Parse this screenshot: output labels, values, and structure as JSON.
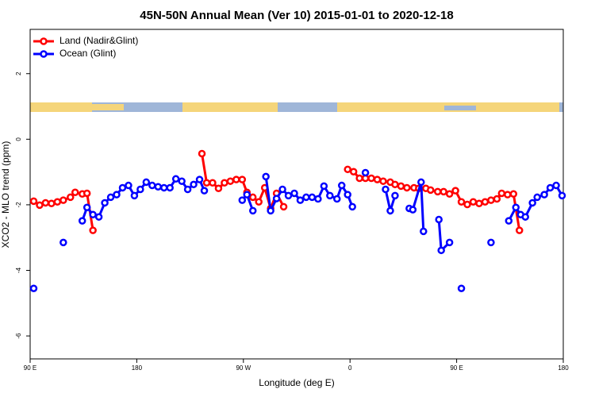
{
  "chart_data": {
    "type": "line",
    "title": "45N-50N Annual Mean (Ver 10)   2015-01-01 to 2020-12-18",
    "x_label": "Longitude (deg E)",
    "y_label": "XCO2 - MLO trend (ppm)",
    "xlim": [
      90,
      540
    ],
    "xticks": [
      {
        "value": 90,
        "label": "90 E"
      },
      180,
      {
        "value": 270,
        "label": "90 W"
      },
      {
        "value": 360,
        "label": "0"
      },
      {
        "value": 450,
        "label": "90 E"
      },
      {
        "value": 540,
        "label": "180"
      }
    ],
    "ylim": [
      -6.7,
      3.35
    ],
    "yticks": [
      -6,
      -4,
      -2,
      0,
      2
    ],
    "legend": "topleft",
    "series": [
      {
        "name": "Land (Nadir&Glint)",
        "color": "#ff0000",
        "x": [
          93,
          98,
          103,
          108,
          113,
          118,
          124,
          128,
          134,
          138,
          143,
          148,
          235,
          239,
          244,
          249,
          254,
          259,
          264,
          269,
          273,
          278,
          283,
          288,
          293,
          298,
          304,
          330,
          358,
          363,
          368,
          373,
          378,
          383,
          388,
          394,
          398,
          403,
          408,
          414,
          418,
          424,
          428,
          434,
          439,
          444,
          449,
          454,
          459,
          464,
          469,
          474,
          479,
          484,
          488,
          493,
          498,
          503
        ],
        "values": [
          -1.89,
          -2.01,
          -1.94,
          -1.96,
          -1.91,
          -1.86,
          -1.77,
          -1.62,
          -1.67,
          -1.65,
          -2.78,
          null,
          -0.44,
          -1.33,
          -1.33,
          -1.5,
          -1.33,
          -1.28,
          -1.23,
          -1.23,
          -1.62,
          -1.77,
          -1.91,
          -1.48,
          -2.11,
          -1.65,
          -2.06,
          null,
          -0.92,
          -0.99,
          -1.19,
          -1.19,
          -1.19,
          -1.23,
          -1.28,
          -1.31,
          -1.38,
          -1.43,
          -1.48,
          -1.48,
          -1.5,
          -1.5,
          -1.55,
          -1.6,
          -1.6,
          -1.67,
          -1.57,
          -1.91,
          -1.99,
          -1.91,
          -1.96,
          -1.91,
          -1.86,
          -1.82,
          -1.65,
          -1.69,
          -1.67,
          -2.78
        ]
      },
      {
        "name": "Ocean (Glint)",
        "color": "#0000ff",
        "x": [
          93,
          105,
          118,
          126,
          134,
          138,
          143,
          148,
          153,
          158,
          163,
          168,
          173,
          178,
          183,
          188,
          193,
          198,
          203,
          208,
          213,
          218,
          223,
          228,
          233,
          237,
          250,
          269,
          273,
          278,
          284,
          289,
          293,
          298,
          303,
          308,
          313,
          318,
          323,
          328,
          333,
          338,
          343,
          349,
          353,
          358,
          362,
          368,
          373,
          380,
          390,
          394,
          398,
          405,
          410,
          413,
          420,
          422,
          428,
          435,
          437,
          444,
          449,
          454,
          465,
          479,
          485,
          494,
          500,
          504,
          508,
          514,
          518,
          524,
          529,
          534,
          539
        ],
        "values": [
          -4.55,
          null,
          -3.15,
          null,
          -2.49,
          -2.08,
          -2.3,
          -2.37,
          -1.94,
          -1.77,
          -1.69,
          -1.48,
          -1.41,
          -1.72,
          -1.53,
          -1.31,
          -1.41,
          -1.45,
          -1.48,
          -1.48,
          -1.21,
          -1.28,
          -1.53,
          -1.38,
          -1.23,
          -1.57,
          null,
          -1.86,
          -1.69,
          -2.18,
          null,
          -1.14,
          -2.18,
          -1.81,
          -1.53,
          -1.72,
          -1.65,
          -1.86,
          -1.77,
          -1.77,
          -1.82,
          -1.43,
          -1.72,
          -1.82,
          -1.41,
          -1.69,
          -2.06,
          null,
          -1.02,
          null,
          -1.53,
          -2.18,
          -1.72,
          null,
          -2.11,
          -2.15,
          -1.31,
          -2.81,
          null,
          -2.45,
          -3.39,
          -3.15,
          null,
          -4.55,
          null,
          -3.15,
          null,
          -2.49,
          -2.08,
          -2.3,
          -2.37,
          -1.94,
          -1.77,
          -1.69,
          -1.48,
          -1.41,
          -1.72
        ]
      }
    ]
  }
}
